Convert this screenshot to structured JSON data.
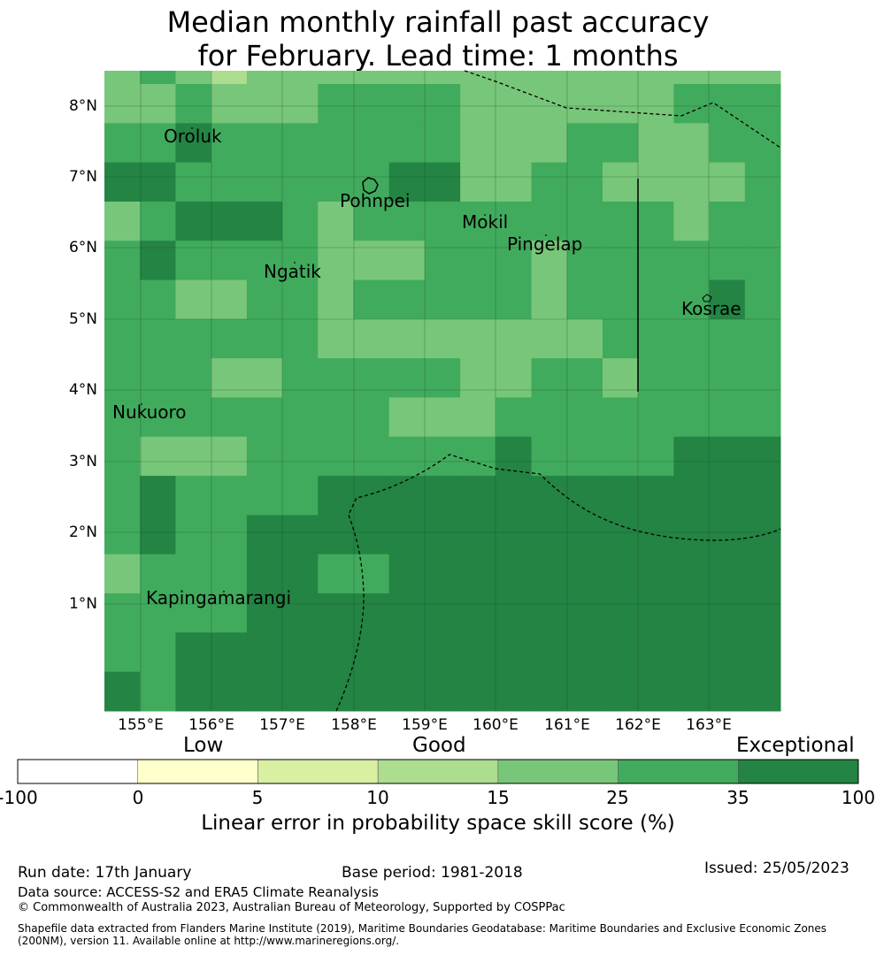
{
  "title": {
    "line1": "Median monthly rainfall past accuracy",
    "line2": "for February. Lead time: 1 months"
  },
  "map": {
    "lat_labels": [
      "8°N",
      "7°N",
      "6°N",
      "5°N",
      "4°N",
      "3°N",
      "2°N",
      "1°N"
    ],
    "lon_labels": [
      "155°E",
      "156°E",
      "157°E",
      "158°E",
      "159°E",
      "160°E",
      "161°E",
      "162°E",
      "163°E"
    ],
    "places": {
      "oroluk": "Oroluk",
      "pohnpei": "Pohnpei",
      "mokil": "Mokil",
      "pingelap": "Pingelap",
      "ngatik": "Ngatik",
      "kosrae": "Kosrae",
      "nukuoro": "Nukuoro",
      "kapingamarangi": "Kapingamarangi"
    },
    "skill_class_colors": [
      "#ffffff",
      "#ffffcc",
      "#d9f0a3",
      "#addd8e",
      "#78c679",
      "#41ab5d",
      "#238443"
    ],
    "grid_rows": [
      [
        4,
        5,
        4,
        3,
        4,
        4,
        4,
        4,
        4,
        4,
        4,
        4,
        4,
        4,
        4,
        4,
        4,
        4,
        4
      ],
      [
        4,
        4,
        5,
        4,
        4,
        4,
        5,
        5,
        5,
        5,
        4,
        4,
        4,
        4,
        4,
        4,
        5,
        5,
        5
      ],
      [
        5,
        5,
        6,
        5,
        5,
        5,
        5,
        5,
        5,
        5,
        4,
        4,
        4,
        5,
        5,
        4,
        4,
        5,
        5
      ],
      [
        6,
        6,
        5,
        5,
        5,
        5,
        5,
        5,
        6,
        6,
        4,
        4,
        5,
        5,
        4,
        4,
        4,
        4,
        5
      ],
      [
        4,
        5,
        6,
        6,
        6,
        5,
        4,
        5,
        5,
        5,
        5,
        5,
        5,
        5,
        5,
        5,
        4,
        5,
        5
      ],
      [
        5,
        6,
        5,
        5,
        5,
        5,
        4,
        4,
        4,
        5,
        5,
        5,
        4,
        5,
        5,
        5,
        5,
        5,
        5
      ],
      [
        5,
        5,
        4,
        4,
        5,
        5,
        4,
        5,
        5,
        5,
        5,
        5,
        4,
        5,
        5,
        5,
        5,
        6,
        5
      ],
      [
        5,
        5,
        5,
        5,
        5,
        5,
        4,
        4,
        4,
        4,
        4,
        4,
        4,
        4,
        5,
        5,
        5,
        5,
        5
      ],
      [
        5,
        5,
        5,
        4,
        4,
        5,
        5,
        5,
        5,
        5,
        4,
        4,
        5,
        5,
        4,
        5,
        5,
        5,
        5
      ],
      [
        5,
        5,
        5,
        5,
        5,
        5,
        5,
        5,
        4,
        4,
        4,
        5,
        5,
        5,
        5,
        5,
        5,
        5,
        5
      ],
      [
        5,
        4,
        4,
        4,
        5,
        5,
        5,
        5,
        5,
        5,
        5,
        6,
        5,
        5,
        5,
        5,
        6,
        6,
        6
      ],
      [
        5,
        6,
        5,
        5,
        5,
        5,
        6,
        6,
        6,
        6,
        6,
        6,
        6,
        6,
        6,
        6,
        6,
        6,
        6
      ],
      [
        5,
        6,
        5,
        5,
        6,
        6,
        6,
        6,
        6,
        6,
        6,
        6,
        6,
        6,
        6,
        6,
        6,
        6,
        6
      ],
      [
        4,
        5,
        5,
        5,
        6,
        6,
        5,
        5,
        6,
        6,
        6,
        6,
        6,
        6,
        6,
        6,
        6,
        6,
        6
      ],
      [
        5,
        5,
        5,
        5,
        6,
        6,
        6,
        6,
        6,
        6,
        6,
        6,
        6,
        6,
        6,
        6,
        6,
        6,
        6
      ],
      [
        5,
        5,
        6,
        6,
        6,
        6,
        6,
        6,
        6,
        6,
        6,
        6,
        6,
        6,
        6,
        6,
        6,
        6,
        6
      ],
      [
        6,
        5,
        6,
        6,
        6,
        6,
        6,
        6,
        6,
        6,
        6,
        6,
        6,
        6,
        6,
        6,
        6,
        6,
        6
      ]
    ]
  },
  "colorbar": {
    "category_labels": [
      "Low",
      "Good",
      "Exceptional"
    ],
    "colors": [
      "#ffffff",
      "#ffffcc",
      "#d9f0a3",
      "#addd8e",
      "#78c679",
      "#41ab5d",
      "#238443"
    ],
    "ticks": [
      "-100",
      "0",
      "5",
      "10",
      "15",
      "25",
      "35",
      "100"
    ],
    "title": "Linear error in probability space skill score (%)"
  },
  "footer": {
    "run_date": "Run date: 17th January",
    "base_period": "Base period: 1981-2018",
    "issued": "Issued: 25/05/2023",
    "data_source": "Data source: ACCESS-S2 and ERA5 Climate Reanalysis",
    "copyright": "© Commonwealth of Australia 2023, Australian Bureau of Meteorology, Supported by COSPPac",
    "shapefile_line1": "Shapefile data extracted from Flanders Marine Institute (2019), Maritime Boundaries Geodatabase: Maritime Boundaries and Exclusive Economic Zones",
    "shapefile_line2": "(200NM), version 11. Available online at http://www.marineregions.org/."
  }
}
